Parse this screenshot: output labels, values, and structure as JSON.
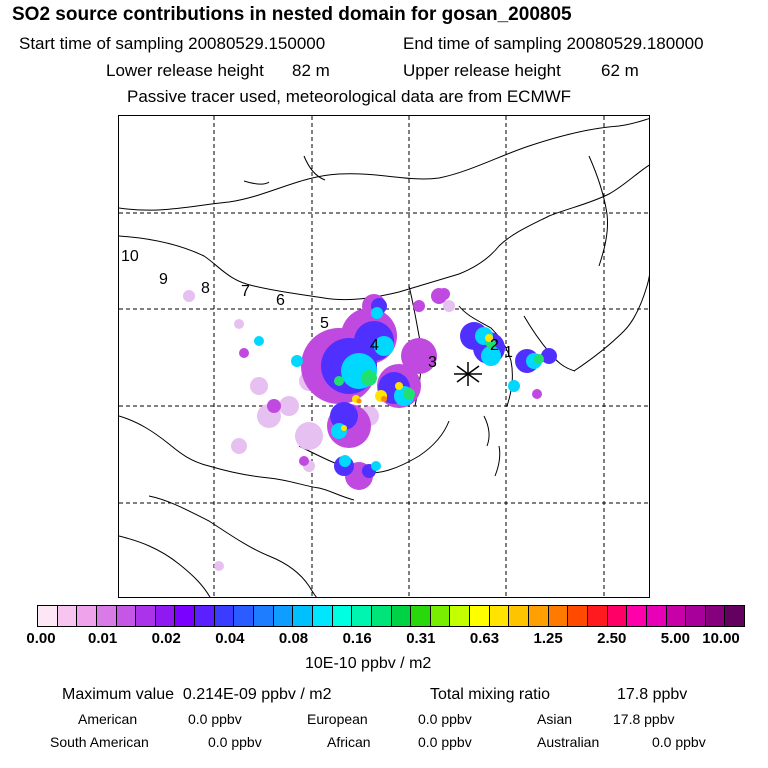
{
  "header": {
    "title": "SO2 source contributions in nested domain for gosan_200805",
    "start_label": "Start time of sampling 20080529.150000",
    "end_label": "End time of sampling 20080529.180000",
    "lower_label": "Lower release height",
    "lower_value": "82 m",
    "upper_label": "Upper release height",
    "upper_value": "62 m",
    "note": "Passive tracer used, meteorological data are from ECMWF"
  },
  "map": {
    "description_icon": "receptor-star-icon",
    "trajectory_labels": [
      "10",
      "9",
      "8",
      "7",
      "6",
      "5",
      "4",
      "3",
      "2",
      "1"
    ]
  },
  "legend": {
    "tick_labels": [
      "0.00",
      "0.01",
      "0.02",
      "0.04",
      "0.08",
      "0.16",
      "0.31",
      "0.63",
      "1.25",
      "2.50",
      "5.00",
      "10.00"
    ],
    "colors": [
      "#fde6f6",
      "#f7c5ef",
      "#eea3ea",
      "#d97be6",
      "#c557e6",
      "#ab33ea",
      "#9019f2",
      "#7a00ff",
      "#5a20ff",
      "#3a3cff",
      "#2a5cff",
      "#1e7cff",
      "#0f9dff",
      "#00c0ff",
      "#00e6ff",
      "#00ffe0",
      "#00f5b0",
      "#00e57a",
      "#00d246",
      "#28d80a",
      "#7aee00",
      "#c4ff00",
      "#ffff00",
      "#ffe400",
      "#ffc400",
      "#ffa000",
      "#ff7a00",
      "#ff4a00",
      "#ff1a20",
      "#ff0066",
      "#ff00aa",
      "#e800b8",
      "#c800a8",
      "#a8009a",
      "#86007e",
      "#640060"
    ],
    "unit": "10E-10 ppbv / m2"
  },
  "summary": {
    "max_label": "Maximum value",
    "max_value": "0.214E-09 ppbv / m2",
    "total_label": "Total mixing ratio",
    "total_value": "17.8 ppbv",
    "regions": [
      {
        "name": "American",
        "value": "0.0 ppbv"
      },
      {
        "name": "European",
        "value": "0.0 ppbv"
      },
      {
        "name": "Asian",
        "value": "17.8 ppbv"
      },
      {
        "name": "South American",
        "value": "0.0 ppbv"
      },
      {
        "name": "African",
        "value": "0.0 ppbv"
      },
      {
        "name": "Australian",
        "value": "0.0 ppbv"
      }
    ]
  }
}
